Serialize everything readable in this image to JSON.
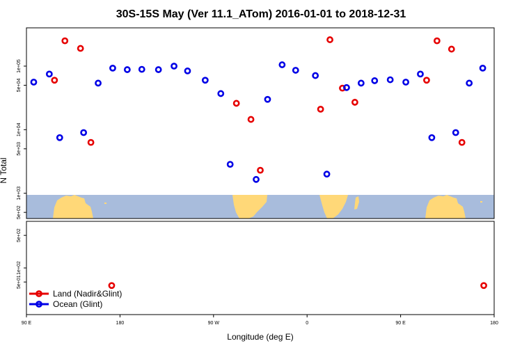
{
  "chart_data": {
    "type": "scatter",
    "title": "30S-15S May (Ver 11.1_ATom)   2016-01-01 to 2018-12-31",
    "xlabel": "Longitude (deg E)",
    "ylabel": "N Total",
    "x_ticks": [
      {
        "value": 90,
        "label": "90 E"
      },
      {
        "value": 180,
        "label": "180"
      },
      {
        "value": 270,
        "label": "90 W"
      },
      {
        "value": 360,
        "label": "0"
      },
      {
        "value": 450,
        "label": "90 E"
      },
      {
        "value": 540,
        "label": "180"
      }
    ],
    "xlim": [
      90,
      540
    ],
    "upper_panel": {
      "yscale": "log",
      "ylim": [
        400,
        400000
      ],
      "y_ticks": [
        {
          "value": 500,
          "label": "5e+02"
        },
        {
          "value": 1000,
          "label": "1e+03"
        },
        {
          "value": 5000,
          "label": "5e+03"
        },
        {
          "value": 10000,
          "label": "1e+04"
        },
        {
          "value": 50000,
          "label": "5e+04"
        },
        {
          "value": 100000,
          "label": "1e+05"
        }
      ]
    },
    "lower_panel": {
      "yscale": "log",
      "ylim": [
        10,
        1000
      ],
      "y_ticks": [
        {
          "value": 50,
          "label": "5e+01"
        },
        {
          "value": 100,
          "label": "1e+02"
        },
        {
          "value": 500,
          "label": "5e+02"
        }
      ]
    },
    "series": [
      {
        "name": "Land (Nadir&Glint)",
        "color": "#e60000",
        "panel_points": [
          {
            "panel": "upper",
            "x": 117,
            "y": 60000
          },
          {
            "panel": "upper",
            "x": 127,
            "y": 250000
          },
          {
            "panel": "upper",
            "x": 142,
            "y": 190000
          },
          {
            "panel": "upper",
            "x": 152,
            "y": 6300
          },
          {
            "panel": "upper",
            "x": 292,
            "y": 26000
          },
          {
            "panel": "upper",
            "x": 306,
            "y": 14500
          },
          {
            "panel": "upper",
            "x": 315,
            "y": 2300
          },
          {
            "panel": "upper",
            "x": 373,
            "y": 21000
          },
          {
            "panel": "upper",
            "x": 382,
            "y": 260000
          },
          {
            "panel": "upper",
            "x": 394,
            "y": 45000
          },
          {
            "panel": "upper",
            "x": 406,
            "y": 27000
          },
          {
            "panel": "upper",
            "x": 475,
            "y": 60000
          },
          {
            "panel": "upper",
            "x": 485,
            "y": 250000
          },
          {
            "panel": "upper",
            "x": 499,
            "y": 185000
          },
          {
            "panel": "upper",
            "x": 509,
            "y": 6300
          },
          {
            "panel": "lower",
            "x": 172,
            "y": 42
          },
          {
            "panel": "lower",
            "x": 530,
            "y": 42
          }
        ]
      },
      {
        "name": "Ocean (Glint)",
        "color": "#0000e6",
        "panel_points": [
          {
            "panel": "upper",
            "x": 97,
            "y": 56000
          },
          {
            "panel": "upper",
            "x": 112,
            "y": 75000
          },
          {
            "panel": "upper",
            "x": 122,
            "y": 7500
          },
          {
            "panel": "upper",
            "x": 145,
            "y": 9000
          },
          {
            "panel": "upper",
            "x": 159,
            "y": 54000
          },
          {
            "panel": "upper",
            "x": 173,
            "y": 93000
          },
          {
            "panel": "upper",
            "x": 187,
            "y": 88000
          },
          {
            "panel": "upper",
            "x": 201,
            "y": 89000
          },
          {
            "panel": "upper",
            "x": 217,
            "y": 88000
          },
          {
            "panel": "upper",
            "x": 232,
            "y": 100000
          },
          {
            "panel": "upper",
            "x": 245,
            "y": 84000
          },
          {
            "panel": "upper",
            "x": 262,
            "y": 60000
          },
          {
            "panel": "upper",
            "x": 277,
            "y": 37000
          },
          {
            "panel": "upper",
            "x": 286,
            "y": 2850
          },
          {
            "panel": "upper",
            "x": 311,
            "y": 1650
          },
          {
            "panel": "upper",
            "x": 322,
            "y": 30000
          },
          {
            "panel": "upper",
            "x": 336,
            "y": 105000
          },
          {
            "panel": "upper",
            "x": 349,
            "y": 86000
          },
          {
            "panel": "upper",
            "x": 368,
            "y": 71000
          },
          {
            "panel": "upper",
            "x": 379,
            "y": 2000
          },
          {
            "panel": "upper",
            "x": 398,
            "y": 46000
          },
          {
            "panel": "upper",
            "x": 412,
            "y": 54000
          },
          {
            "panel": "upper",
            "x": 425,
            "y": 59000
          },
          {
            "panel": "upper",
            "x": 440,
            "y": 61000
          },
          {
            "panel": "upper",
            "x": 455,
            "y": 56000
          },
          {
            "panel": "upper",
            "x": 469,
            "y": 75000
          },
          {
            "panel": "upper",
            "x": 480,
            "y": 7500
          },
          {
            "panel": "upper",
            "x": 503,
            "y": 9000
          },
          {
            "panel": "upper",
            "x": 516,
            "y": 54000
          },
          {
            "panel": "upper",
            "x": 529,
            "y": 93000
          }
        ]
      }
    ],
    "legend": {
      "placement": "bottom-left",
      "entries": [
        "Land (Nadir&Glint)",
        "Ocean (Glint)"
      ]
    },
    "grid": false,
    "background_map": {
      "ocean_color": "#a8bcdc",
      "land_color": "#ffd878"
    }
  }
}
